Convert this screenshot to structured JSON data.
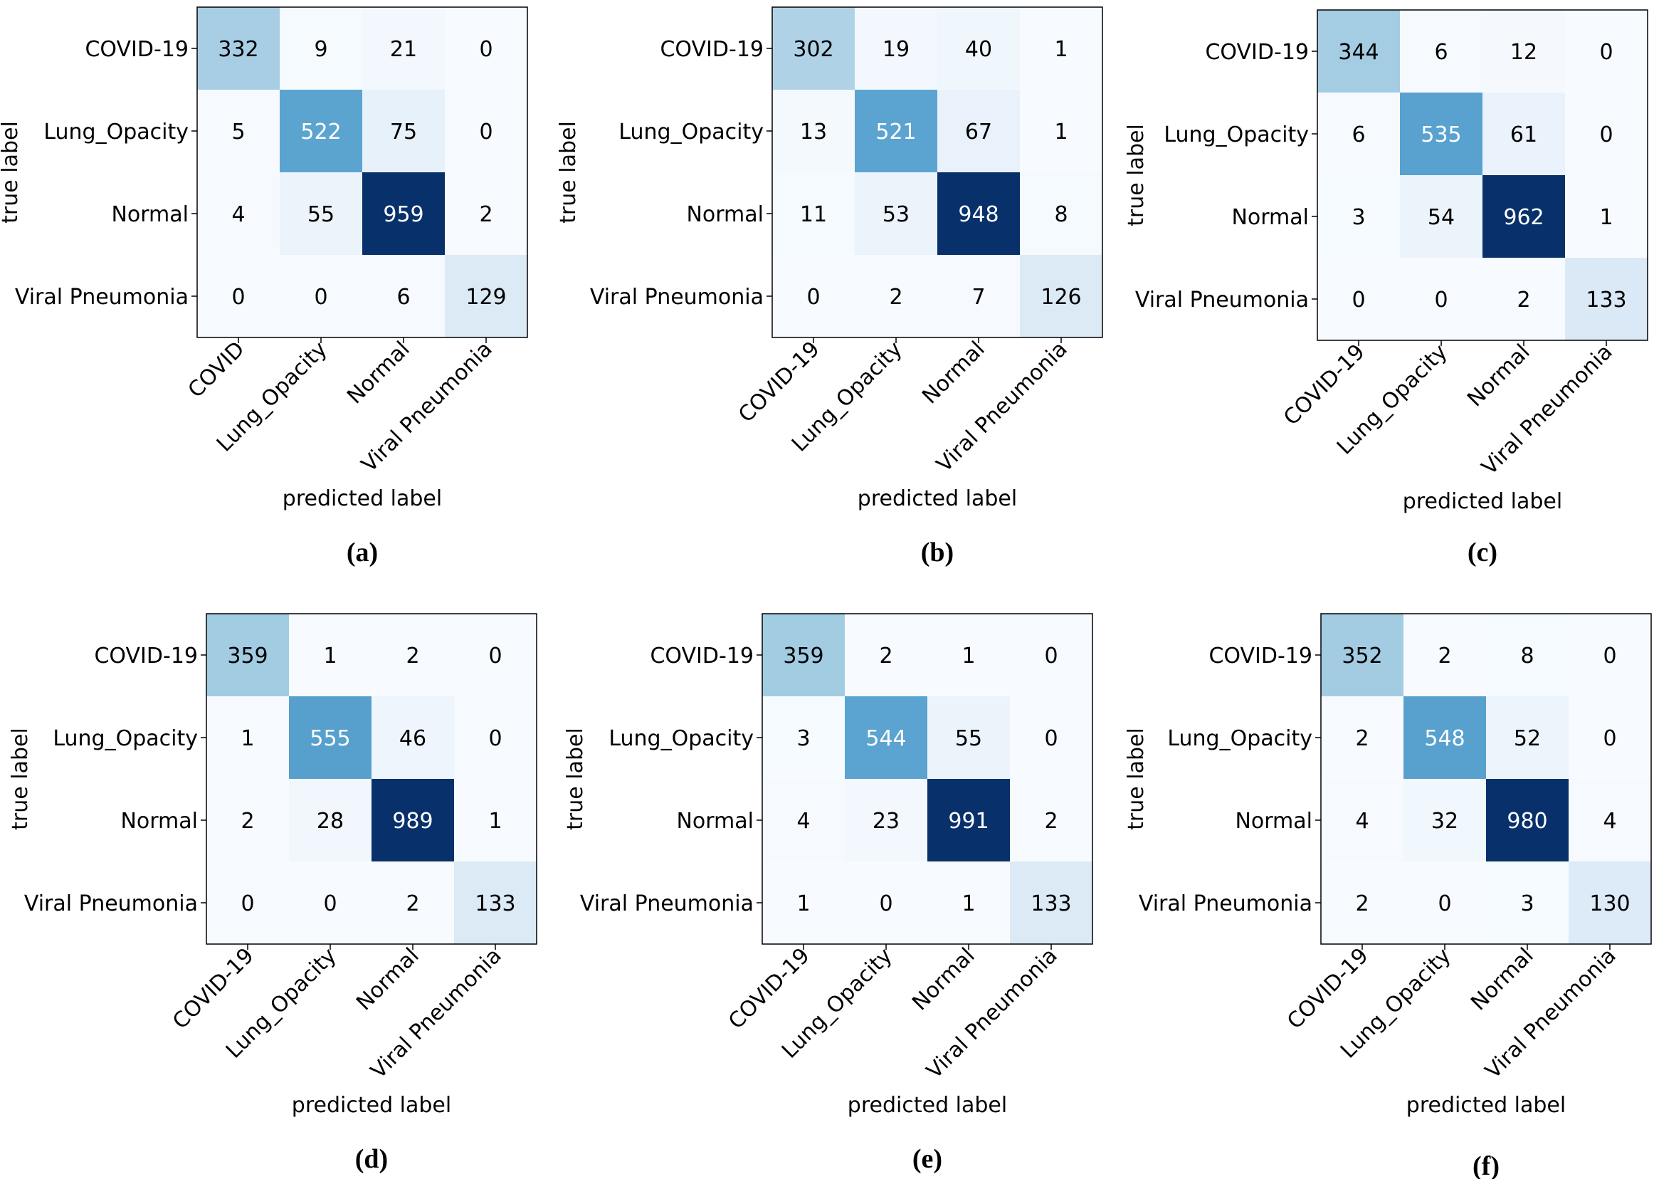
{
  "figure": {
    "colormap": {
      "name": "Blues",
      "stops": [
        "#f7fbff",
        "#deebf7",
        "#c6dbef",
        "#9ecae1",
        "#6baed6",
        "#4292c6",
        "#2171b5",
        "#08519c",
        "#08306b"
      ]
    },
    "text_light": "#ffffff",
    "text_dark": "#000000"
  },
  "chart_data": [
    {
      "type": "heatmap",
      "panel_label": "(a)",
      "xlabel": "predicted label",
      "ylabel": "true label",
      "x_categories": [
        "COVID",
        "Lung_Opacity",
        "Normal",
        "Viral Pneumonia"
      ],
      "y_categories": [
        "COVID-19",
        "Lung_Opacity",
        "Normal",
        "Viral Pneumonia"
      ],
      "matrix": [
        [
          332,
          9,
          21,
          0
        ],
        [
          5,
          522,
          75,
          0
        ],
        [
          4,
          55,
          959,
          2
        ],
        [
          0,
          0,
          6,
          129
        ]
      ]
    },
    {
      "type": "heatmap",
      "panel_label": "(b)",
      "xlabel": "predicted label",
      "ylabel": "true label",
      "x_categories": [
        "COVID-19",
        "Lung_Opacity",
        "Normal",
        "Viral Pneumonia"
      ],
      "y_categories": [
        "COVID-19",
        "Lung_Opacity",
        "Normal",
        "Viral Pneumonia"
      ],
      "matrix": [
        [
          302,
          19,
          40,
          1
        ],
        [
          13,
          521,
          67,
          1
        ],
        [
          11,
          53,
          948,
          8
        ],
        [
          0,
          2,
          7,
          126
        ]
      ]
    },
    {
      "type": "heatmap",
      "panel_label": "(c)",
      "xlabel": "predicted label",
      "ylabel": "true label",
      "x_categories": [
        "COVID-19",
        "Lung_Opacity",
        "Normal",
        "Viral Pneumonia"
      ],
      "y_categories": [
        "COVID-19",
        "Lung_Opacity",
        "Normal",
        "Viral Pneumonia"
      ],
      "matrix": [
        [
          344,
          6,
          12,
          0
        ],
        [
          6,
          535,
          61,
          0
        ],
        [
          3,
          54,
          962,
          1
        ],
        [
          0,
          0,
          2,
          133
        ]
      ]
    },
    {
      "type": "heatmap",
      "panel_label": "(d)",
      "xlabel": "predicted label",
      "ylabel": "true label",
      "x_categories": [
        "COVID-19",
        "Lung_Opacity",
        "Normal",
        "Viral Pneumonia"
      ],
      "y_categories": [
        "COVID-19",
        "Lung_Opacity",
        "Normal",
        "Viral Pneumonia"
      ],
      "matrix": [
        [
          359,
          1,
          2,
          0
        ],
        [
          1,
          555,
          46,
          0
        ],
        [
          2,
          28,
          989,
          1
        ],
        [
          0,
          0,
          2,
          133
        ]
      ]
    },
    {
      "type": "heatmap",
      "panel_label": "(e)",
      "xlabel": "predicted label",
      "ylabel": "true label",
      "x_categories": [
        "COVID-19",
        "Lung_Opacity",
        "Normal",
        "Viral Pneumonia"
      ],
      "y_categories": [
        "COVID-19",
        "Lung_Opacity",
        "Normal",
        "Viral Pneumonia"
      ],
      "matrix": [
        [
          359,
          2,
          1,
          0
        ],
        [
          3,
          544,
          55,
          0
        ],
        [
          4,
          23,
          991,
          2
        ],
        [
          1,
          0,
          1,
          133
        ]
      ]
    },
    {
      "type": "heatmap",
      "panel_label": "(f)",
      "xlabel": "predicted label",
      "ylabel": "true label",
      "x_categories": [
        "COVID-19",
        "Lung_Opacity",
        "Normal",
        "Viral Pneumonia"
      ],
      "y_categories": [
        "COVID-19",
        "Lung_Opacity",
        "Normal",
        "Viral Pneumonia"
      ],
      "matrix": [
        [
          352,
          2,
          8,
          0
        ],
        [
          2,
          548,
          52,
          0
        ],
        [
          4,
          32,
          980,
          4
        ],
        [
          2,
          0,
          3,
          130
        ]
      ]
    }
  ]
}
